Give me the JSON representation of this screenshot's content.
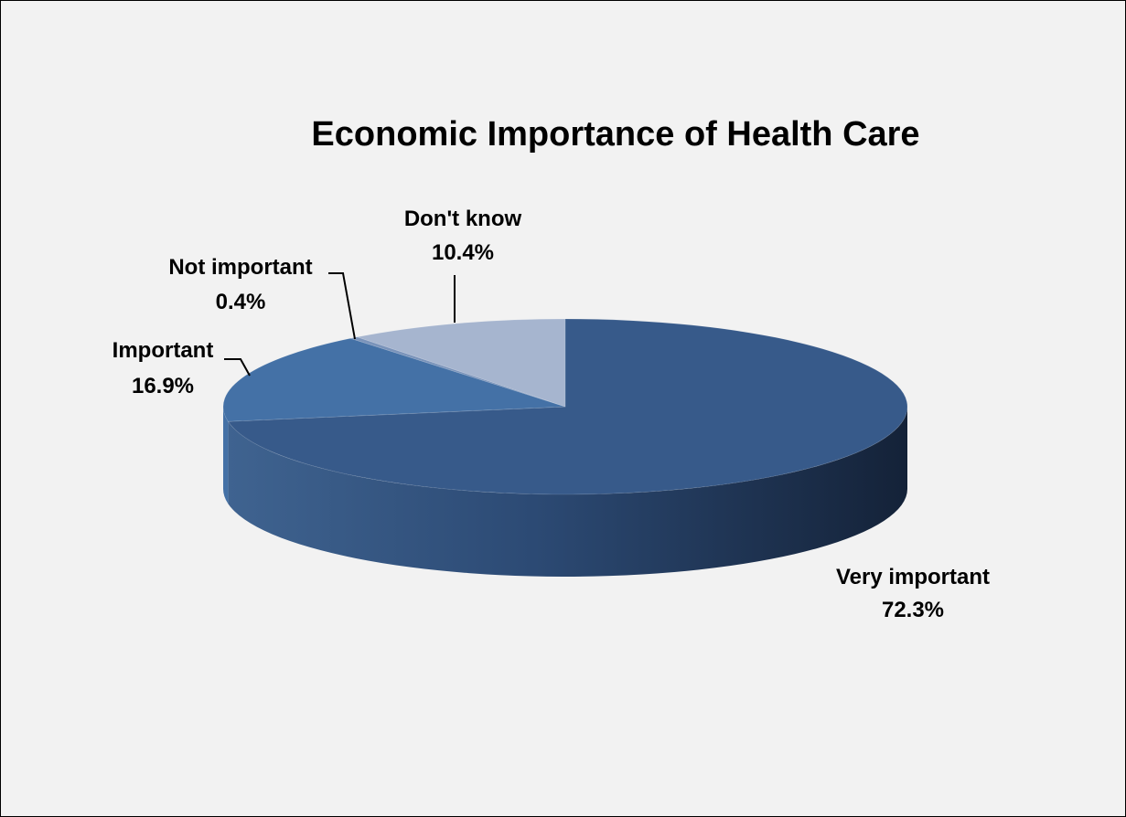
{
  "chart_data": {
    "type": "pie",
    "title": "Economic Importance of Health Care",
    "three_d": true,
    "legend": "none",
    "slices": [
      {
        "label": "Very important",
        "value": 72.3,
        "value_label": "72.3%",
        "color": "#375a8a"
      },
      {
        "label": "Important",
        "value": 16.9,
        "value_label": "16.9%",
        "color": "#4471a6"
      },
      {
        "label": "Not important",
        "value": 0.4,
        "value_label": "0.4%",
        "color": "#7a93ba"
      },
      {
        "label": "Don't know",
        "value": 10.4,
        "value_label": "10.4%",
        "color": "#a6b5cf"
      }
    ]
  }
}
